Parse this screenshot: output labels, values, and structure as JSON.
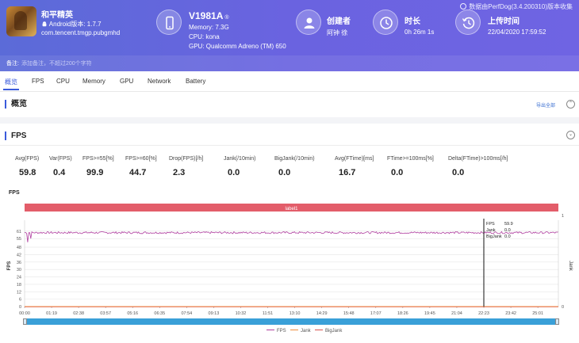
{
  "header": {
    "watermark": "数据由PerfDog(3.4.200310)版本收集",
    "app": {
      "name": "和平精英",
      "version": "Android版本: 1.7.7",
      "package": "com.tencent.tmgp.pubgmhd"
    },
    "device": {
      "name": "V1981A",
      "mark": "®",
      "memory": "Memory: 7.3G",
      "cpu": "CPU: kona",
      "gpu": "GPU: Qualcomm Adreno (TM) 650"
    },
    "creator": {
      "label": "创建者",
      "value": "阿钟 徐"
    },
    "duration": {
      "label": "时长",
      "value": "0h 26m 1s"
    },
    "upload": {
      "label": "上传时间",
      "value": "22/04/2020 17:59:52"
    },
    "note": {
      "label": "备注:",
      "placeholder": "添加备注，不超过200个字符"
    }
  },
  "tabs": [
    "概览",
    "FPS",
    "CPU",
    "Memory",
    "GPU",
    "Network",
    "Battery"
  ],
  "overview": {
    "title": "概览",
    "export": "导出全部"
  },
  "fps_section": {
    "title": "FPS",
    "stats": [
      {
        "label": "Avg(FPS)",
        "value": "59.8"
      },
      {
        "label": "Var(FPS)",
        "value": "0.4"
      },
      {
        "label": "FPS>=55[%]",
        "value": "99.9"
      },
      {
        "label": "FPS>=60[%]",
        "value": "44.7"
      },
      {
        "label": "Drop(FPS)[/h]",
        "value": "2.3"
      },
      {
        "label": "Jank(/10min)",
        "value": "0.0"
      },
      {
        "label": "BigJank(/10min)",
        "value": "0.0"
      },
      {
        "label": "Avg(FTime)[ms]",
        "value": "16.7"
      },
      {
        "label": "FTime>=100ms[%]",
        "value": "0.0"
      },
      {
        "label": "Delta(FTime)>100ms[/h]",
        "value": "0.0"
      }
    ]
  },
  "chart_data": {
    "type": "line",
    "title": "FPS",
    "band_label": "label1",
    "xlabel": "",
    "ylabel": "FPS",
    "y2label": "Jank",
    "ylim": [
      0,
      66
    ],
    "y_ticks": [
      0,
      6,
      12,
      18,
      24,
      30,
      36,
      42,
      48,
      55,
      61
    ],
    "y2_ticks": [
      0,
      1
    ],
    "x_ticks": [
      "00:00",
      "01:19",
      "02:38",
      "03:57",
      "05:16",
      "06:35",
      "07:54",
      "09:13",
      "10:32",
      "11:51",
      "13:10",
      "14:29",
      "15:48",
      "17:07",
      "18:26",
      "19:45",
      "21:04",
      "22:23",
      "23:42",
      "25:01"
    ],
    "x_range_seconds": [
      0,
      1561
    ],
    "series": [
      {
        "name": "FPS",
        "color": "#b040a0",
        "approx_value": 59.8,
        "dips": [
          {
            "t": 10,
            "v": 52
          },
          {
            "t": 18,
            "v": 55
          }
        ]
      },
      {
        "name": "Jank",
        "color": "#f08c3c",
        "approx_value": 0
      },
      {
        "name": "BigJank",
        "color": "#d9534f",
        "approx_value": 0
      }
    ],
    "cursor": {
      "time": "22:23",
      "FPS": "59.9",
      "Jank": "0.0",
      "BigJank": "0.0"
    },
    "tooltip_labels": {
      "FPS": "FPS",
      "Jank": "Jank",
      "BigJank": "BigJank"
    }
  },
  "legend": [
    "FPS",
    "Jank",
    "BigJank"
  ],
  "colors": {
    "accent": "#3b5bdb",
    "header": "#6a63e0",
    "band": "#e35d6a",
    "scroll": "#3aa0d8"
  }
}
